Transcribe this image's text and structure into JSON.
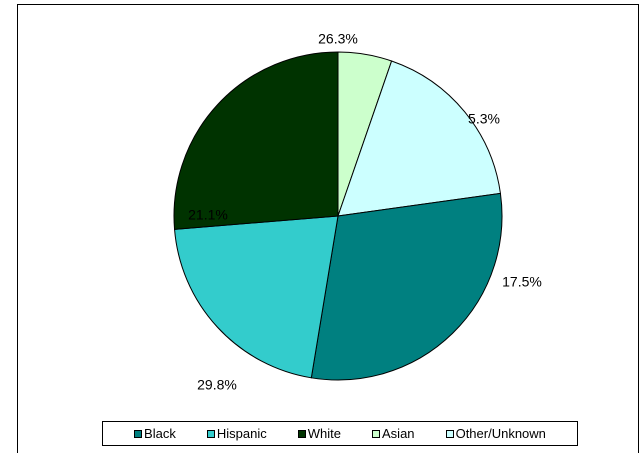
{
  "chart_data": {
    "type": "pie",
    "title": "",
    "start_angle_deg": 0,
    "direction": "clockwise",
    "legend": "bottom",
    "slices": [
      {
        "label": "Asian",
        "value": 5.3,
        "display": "5.3%",
        "color": "#ccffcc"
      },
      {
        "label": "Other/Unknown",
        "value": 17.5,
        "display": "17.5%",
        "color": "#ccffff"
      },
      {
        "label": "Black",
        "value": 29.8,
        "display": "29.8%",
        "color": "#008080"
      },
      {
        "label": "Hispanic",
        "value": 21.1,
        "display": "21.1%",
        "color": "#33cccc"
      },
      {
        "label": "White",
        "value": 26.3,
        "display": "26.3%",
        "color": "#003300"
      }
    ],
    "legend_order": [
      "Black",
      "Hispanic",
      "White",
      "Asian",
      "Other/Unknown"
    ]
  }
}
